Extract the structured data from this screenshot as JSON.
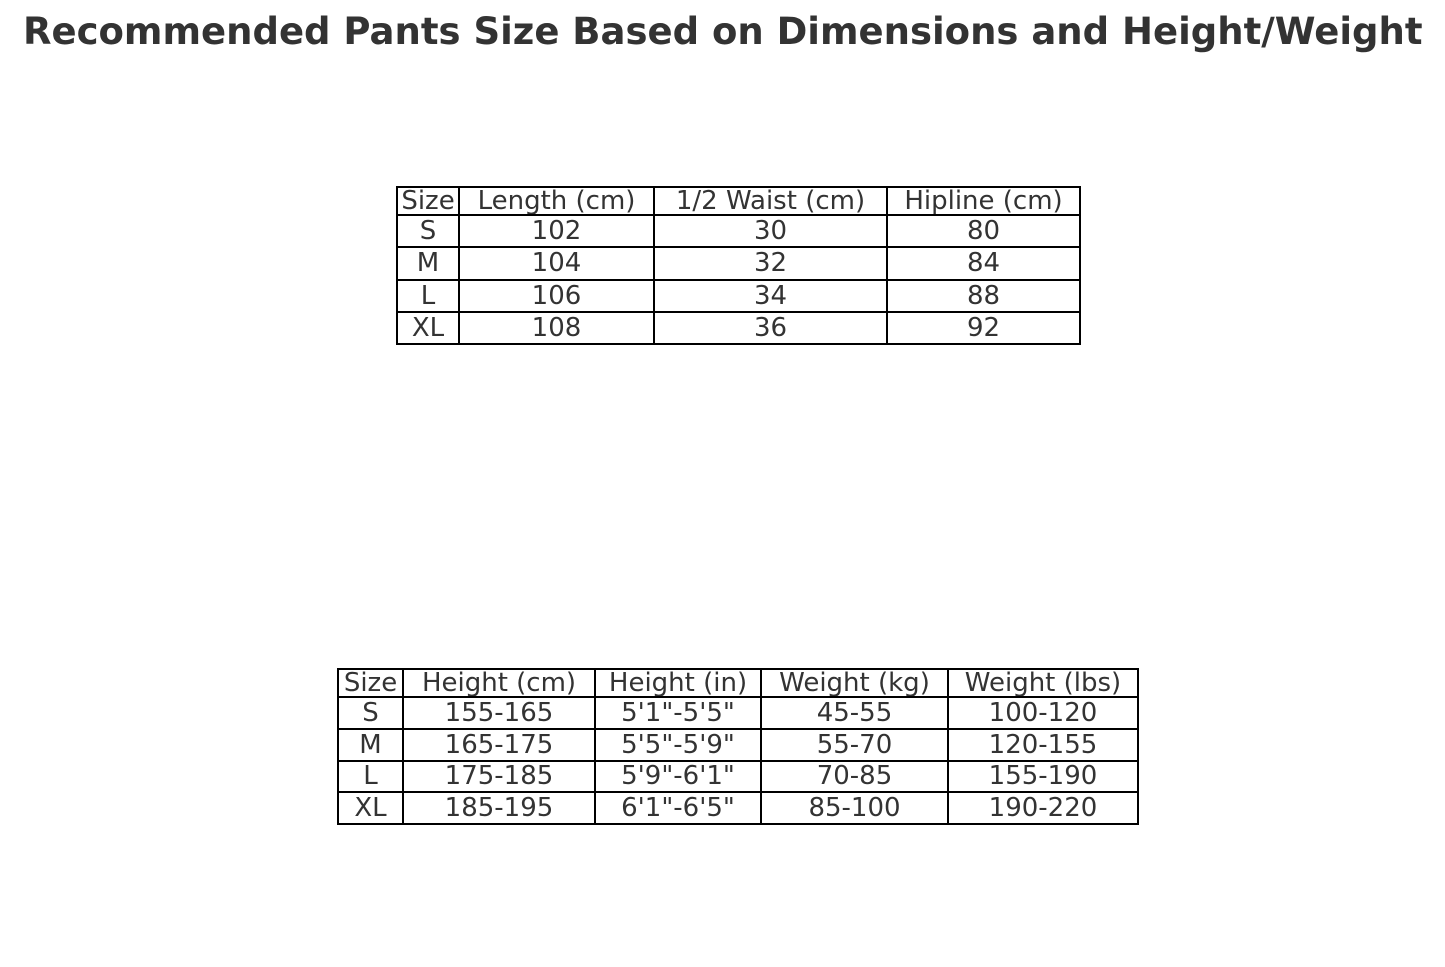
{
  "title": "Recommended Pants Size Based on Dimensions and Height/Weight",
  "colors": {
    "text": "#333333",
    "table_border": "#000000",
    "background": "#ffffff"
  },
  "chart_data": [
    {
      "type": "table",
      "name": "pants-dimensions",
      "columns": [
        "Size",
        "Length (cm)",
        "1/2 Waist (cm)",
        "Hipline (cm)"
      ],
      "rows": [
        [
          "S",
          "102",
          "30",
          "80"
        ],
        [
          "M",
          "104",
          "32",
          "84"
        ],
        [
          "L",
          "106",
          "34",
          "88"
        ],
        [
          "XL",
          "108",
          "36",
          "92"
        ]
      ]
    },
    {
      "type": "table",
      "name": "height-weight-recommendations",
      "columns": [
        "Size",
        "Height (cm)",
        "Height (in)",
        "Weight (kg)",
        "Weight (lbs)"
      ],
      "rows": [
        [
          "S",
          "155-165",
          "5'1\"-5'5\"",
          "45-55",
          "100-120"
        ],
        [
          "M",
          "165-175",
          "5'5\"-5'9\"",
          "55-70",
          "120-155"
        ],
        [
          "L",
          "175-185",
          "5'9\"-6'1\"",
          "70-85",
          "155-190"
        ],
        [
          "XL",
          "185-195",
          "6'1\"-6'5\"",
          "85-100",
          "190-220"
        ]
      ]
    }
  ]
}
